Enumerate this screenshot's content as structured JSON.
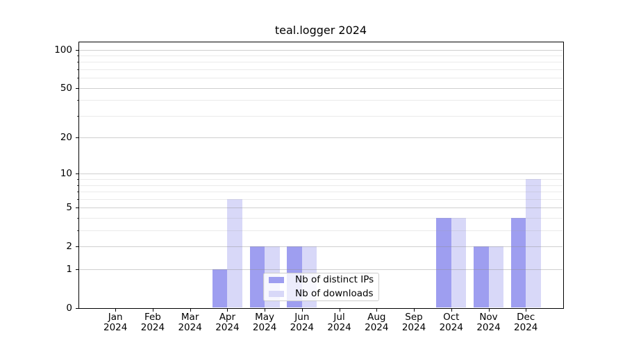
{
  "chart_data": {
    "type": "bar",
    "title": "teal.logger 2024",
    "categories": [
      "Jan",
      "Feb",
      "Mar",
      "Apr",
      "May",
      "Jun",
      "Jul",
      "Aug",
      "Sep",
      "Oct",
      "Nov",
      "Dec"
    ],
    "x_tick_second_line": "2024",
    "series": [
      {
        "name": "Nb of distinct IPs",
        "color": "#9e9ef0",
        "values": [
          0,
          0,
          0,
          1,
          2,
          2,
          0,
          0,
          0,
          4,
          2,
          4
        ]
      },
      {
        "name": "Nb of downloads",
        "color": "#d8d8f8",
        "values": [
          0,
          0,
          0,
          6,
          2,
          2,
          0,
          0,
          0,
          4,
          2,
          9
        ]
      }
    ],
    "yscale": "log1p",
    "ylim": [
      0,
      116
    ],
    "y_major_ticks": [
      0,
      1,
      2,
      5,
      10,
      20,
      50,
      100
    ],
    "y_minor_ticks": [
      3,
      4,
      6,
      7,
      8,
      9,
      30,
      40,
      60,
      70,
      80,
      90
    ],
    "grid": "on",
    "grid_over_bars": true,
    "legend_position": "lower center",
    "colors": {
      "background": "#ffffff",
      "spine": "#000000",
      "text": "#000000",
      "major_grid": "#d6d6d6",
      "minor_grid": "#ebebeb"
    }
  }
}
